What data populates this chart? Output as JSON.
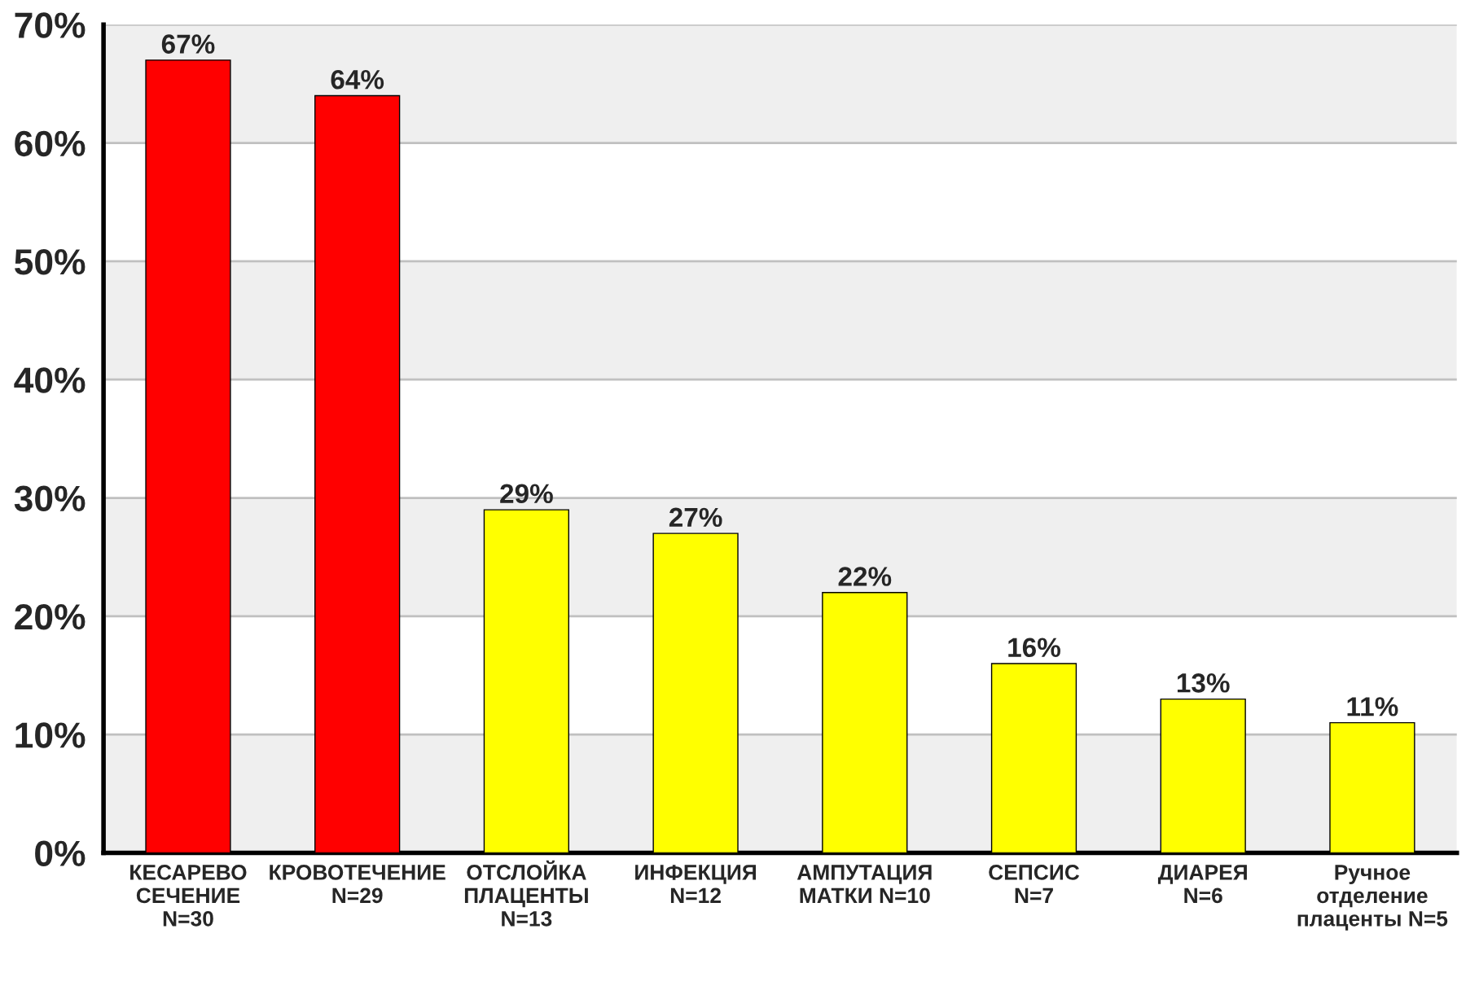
{
  "chart_data": {
    "type": "bar",
    "categories": [
      "КЕСАРЕВО\nСЕЧЕНИЕ\nN=30",
      "КРОВОТЕЧЕНИЕ\nN=29",
      "ОТСЛОЙКА\nПЛАЦЕНТЫ\nN=13",
      "ИНФЕКЦИЯ\nN=12",
      "АМПУТАЦИЯ\nМАТКИ N=10",
      "СЕПСИС\nN=7",
      "ДИАРЕЯ\nN=6",
      "Ручное\nотделение\nплаценты N=5"
    ],
    "values": [
      67,
      64,
      29,
      27,
      22,
      16,
      13,
      11
    ],
    "colors": [
      "#ff0000",
      "#ff0000",
      "#ffff00",
      "#ffff00",
      "#ffff00",
      "#ffff00",
      "#ffff00",
      "#ffff00"
    ],
    "value_labels": [
      "67%",
      "64%",
      "29%",
      "27%",
      "22%",
      "16%",
      "13%",
      "11%"
    ],
    "ylim": [
      0,
      70
    ],
    "yticks": [
      {
        "value": 0,
        "label": "0%"
      },
      {
        "value": 10,
        "label": "10%"
      },
      {
        "value": 20,
        "label": "20%"
      },
      {
        "value": 30,
        "label": "30%"
      },
      {
        "value": 40,
        "label": "40%"
      },
      {
        "value": 50,
        "label": "50%"
      },
      {
        "value": 60,
        "label": "60%"
      },
      {
        "value": 70,
        "label": "70%"
      }
    ],
    "grid": "y",
    "bands": [
      {
        "axis": "y",
        "from": 0,
        "to": 10,
        "color": "#efefef"
      },
      {
        "axis": "y",
        "from": 20,
        "to": 30,
        "color": "#efefef"
      },
      {
        "axis": "y",
        "from": 40,
        "to": 50,
        "color": "#efefef"
      },
      {
        "axis": "y",
        "from": 60,
        "to": 70,
        "color": "#efefef"
      }
    ]
  }
}
